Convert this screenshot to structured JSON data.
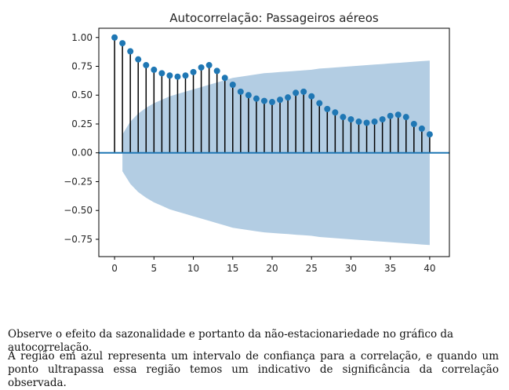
{
  "chart_data": {
    "type": "stem",
    "title": "Autocorrelação: Passageiros aéreos",
    "xlabel": "",
    "ylabel": "",
    "xlim": [
      -2,
      42.5
    ],
    "ylim": [
      -0.9,
      1.08
    ],
    "x_ticks": [
      0,
      5,
      10,
      15,
      20,
      25,
      30,
      35,
      40
    ],
    "x_tick_labels": [
      "0",
      "5",
      "10",
      "15",
      "20",
      "25",
      "30",
      "35",
      "40"
    ],
    "y_ticks": [
      1.0,
      0.75,
      0.5,
      0.25,
      0.0,
      -0.25,
      -0.5,
      -0.75
    ],
    "y_tick_labels": [
      "1.00",
      "0.75",
      "0.50",
      "0.25",
      "0.00",
      "−0.25",
      "−0.50",
      "−0.75"
    ],
    "lags": [
      0,
      1,
      2,
      3,
      4,
      5,
      6,
      7,
      8,
      9,
      10,
      11,
      12,
      13,
      14,
      15,
      16,
      17,
      18,
      19,
      20,
      21,
      22,
      23,
      24,
      25,
      26,
      27,
      28,
      29,
      30,
      31,
      32,
      33,
      34,
      35,
      36,
      37,
      38,
      39,
      40
    ],
    "values": [
      1.0,
      0.95,
      0.88,
      0.81,
      0.76,
      0.72,
      0.69,
      0.67,
      0.66,
      0.67,
      0.7,
      0.74,
      0.76,
      0.71,
      0.65,
      0.59,
      0.53,
      0.5,
      0.47,
      0.45,
      0.44,
      0.46,
      0.48,
      0.52,
      0.53,
      0.49,
      0.43,
      0.38,
      0.35,
      0.31,
      0.29,
      0.27,
      0.26,
      0.27,
      0.29,
      0.32,
      0.33,
      0.31,
      0.25,
      0.21,
      0.16
    ],
    "confidence_upper": [
      null,
      0.16,
      0.27,
      0.34,
      0.39,
      0.43,
      0.46,
      0.49,
      0.51,
      0.53,
      0.55,
      0.57,
      0.59,
      0.61,
      0.63,
      0.65,
      0.66,
      0.67,
      0.68,
      0.69,
      0.695,
      0.7,
      0.705,
      0.71,
      0.715,
      0.72,
      0.73,
      0.735,
      0.74,
      0.745,
      0.75,
      0.755,
      0.76,
      0.765,
      0.77,
      0.775,
      0.78,
      0.785,
      0.79,
      0.795,
      0.8
    ],
    "grid": false,
    "colors": {
      "stem": "#000000",
      "marker": "#1f77b4",
      "band": "#b3cde3",
      "zero_line": "#1f77b4"
    }
  },
  "text": {
    "paragraph1": "Observe o efeito da sazonalidade e portanto da não-estacionariedade no gráfico da autocorrelação.",
    "paragraph2": "A região em azul representa um intervalo de confiança para a correlação, e quando um ponto ultrapassa essa região temos um indicativo de significância da correlação observada."
  }
}
